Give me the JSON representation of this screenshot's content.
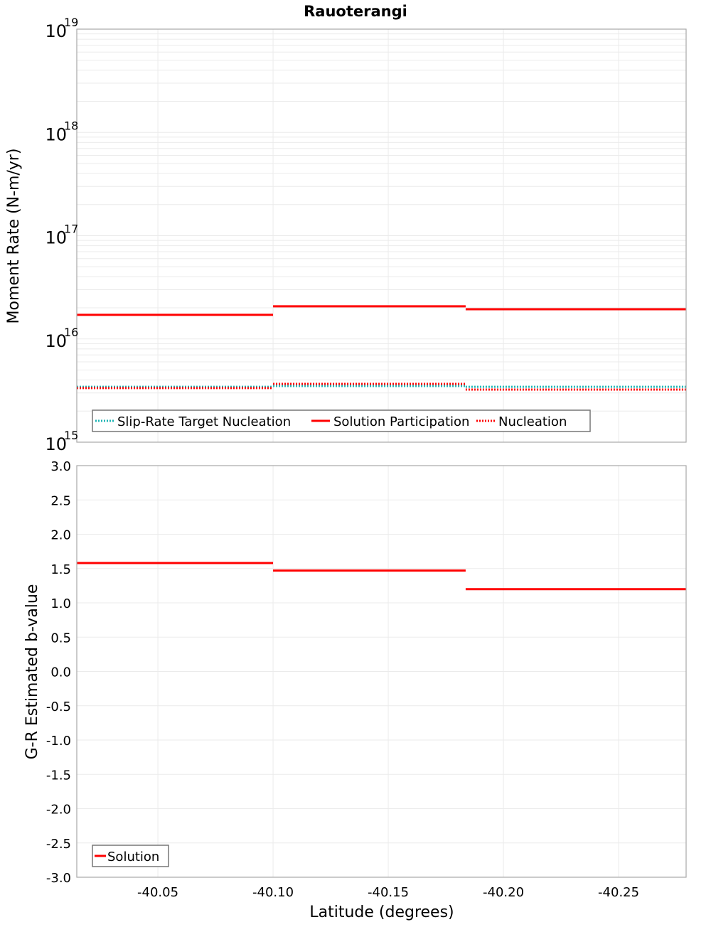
{
  "chart_data": [
    {
      "type": "line",
      "subtype": "step",
      "title": "Rauoterangi",
      "xlabel": "",
      "ylabel": "Moment Rate (N-m/yr)",
      "yscale": "log",
      "ylim": [
        1000000000000000.0,
        1e+19
      ],
      "xlim": [
        -40.0148,
        -40.2793
      ],
      "x_reversed": true,
      "ytick_labels": [
        "10^15",
        "10^16",
        "10^17",
        "10^18",
        "10^19"
      ],
      "grid": true,
      "legend_position": "lower-left, horizontal",
      "segment_bounds": [
        -40.0148,
        -40.1,
        -40.1836,
        -40.2793
      ],
      "series": [
        {
          "name": "Slip-Rate Target Nucleation",
          "color": "#1fb5b5",
          "style": "dotted",
          "values": [
            3440000000000000.0,
            3500000000000000.0,
            3440000000000000.0
          ]
        },
        {
          "name": "Solution Participation",
          "color": "#ff0000",
          "style": "solid",
          "values": [
            1.71e+16,
            2.07e+16,
            1.94e+16
          ]
        },
        {
          "name": "Nucleation",
          "color": "#ff0000",
          "style": "dotted",
          "values": [
            3340000000000000.0,
            3670000000000000.0,
            3230000000000000.0
          ]
        }
      ]
    },
    {
      "type": "line",
      "subtype": "step",
      "title": "",
      "xlabel": "Latitude (degrees)",
      "ylabel": "G-R Estimated b-value",
      "ylim": [
        -3.0,
        3.0
      ],
      "xlim": [
        -40.0148,
        -40.2793
      ],
      "x_reversed": true,
      "xtick_labels": [
        "-40.05",
        "-40.10",
        "-40.15",
        "-40.20",
        "-40.25"
      ],
      "ytick_labels": [
        "3.0",
        "2.5",
        "2.0",
        "1.5",
        "1.0",
        "0.5",
        "0.0",
        "-0.5",
        "-1.0",
        "-1.5",
        "-2.0",
        "-2.5",
        "-3.0"
      ],
      "grid": true,
      "legend_position": "lower-left",
      "segment_bounds": [
        -40.0148,
        -40.1,
        -40.1836,
        -40.2793
      ],
      "series": [
        {
          "name": "Solution",
          "color": "#ff0000",
          "style": "solid",
          "values": [
            1.58,
            1.47,
            1.2
          ]
        }
      ]
    }
  ],
  "labels": {
    "title": "Rauoterangi",
    "top_ylabel": "Moment Rate (N-m/yr)",
    "bottom_ylabel": "G-R Estimated b-value",
    "xlabel": "Latitude (degrees)"
  }
}
